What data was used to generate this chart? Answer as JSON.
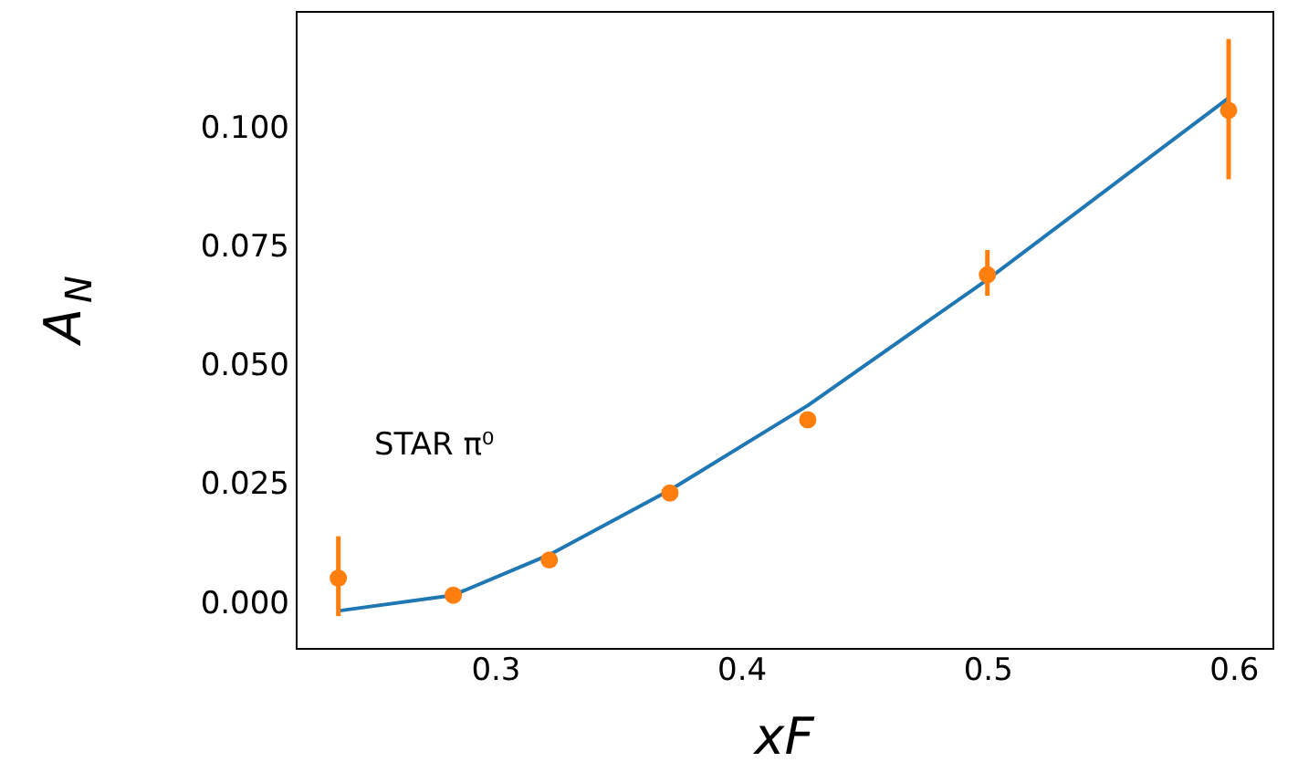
{
  "chart_data": {
    "type": "line",
    "xlabel": "xF",
    "ylabel": "A$_{N}$",
    "annotations": [
      "STAR π⁰"
    ],
    "series": [
      {
        "color": "#1f77b4",
        "marker": "none",
        "x": [
          0.2363,
          0.283,
          0.322,
          0.371,
          0.427,
          0.5,
          0.598
        ],
        "values": [
          -0.0017,
          0.0016,
          0.0101,
          0.0237,
          0.0415,
          0.068,
          0.1062
        ]
      },
      {
        "type": "scatter",
        "color": "#ff7f0e",
        "marker": "circle",
        "x": [
          0.2363,
          0.283,
          0.322,
          0.371,
          0.427,
          0.5,
          0.598
        ],
        "values": [
          0.0052,
          0.0016,
          0.009,
          0.0231,
          0.0385,
          0.069,
          0.1036
        ],
        "errors": [
          [
            -0.0028,
            0.014
          ],
          null,
          null,
          null,
          null,
          [
            0.0646,
            0.0742
          ],
          [
            0.0891,
            0.1186
          ]
        ]
      }
    ],
    "xlim": [
      0.219,
      0.6158
    ],
    "ylim": [
      -0.0095,
      0.1245
    ],
    "xticks": [
      0.3,
      0.4,
      0.5,
      0.6
    ],
    "yticks": [
      {
        "value": 0,
        "label": "0.000"
      },
      {
        "value": 0.025,
        "label": "0.025"
      },
      {
        "value": 0.05,
        "label": "0.050"
      },
      {
        "value": 0.075,
        "label": "0.075"
      },
      {
        "value": 0.1,
        "label": "0.100"
      }
    ],
    "grid": false
  }
}
